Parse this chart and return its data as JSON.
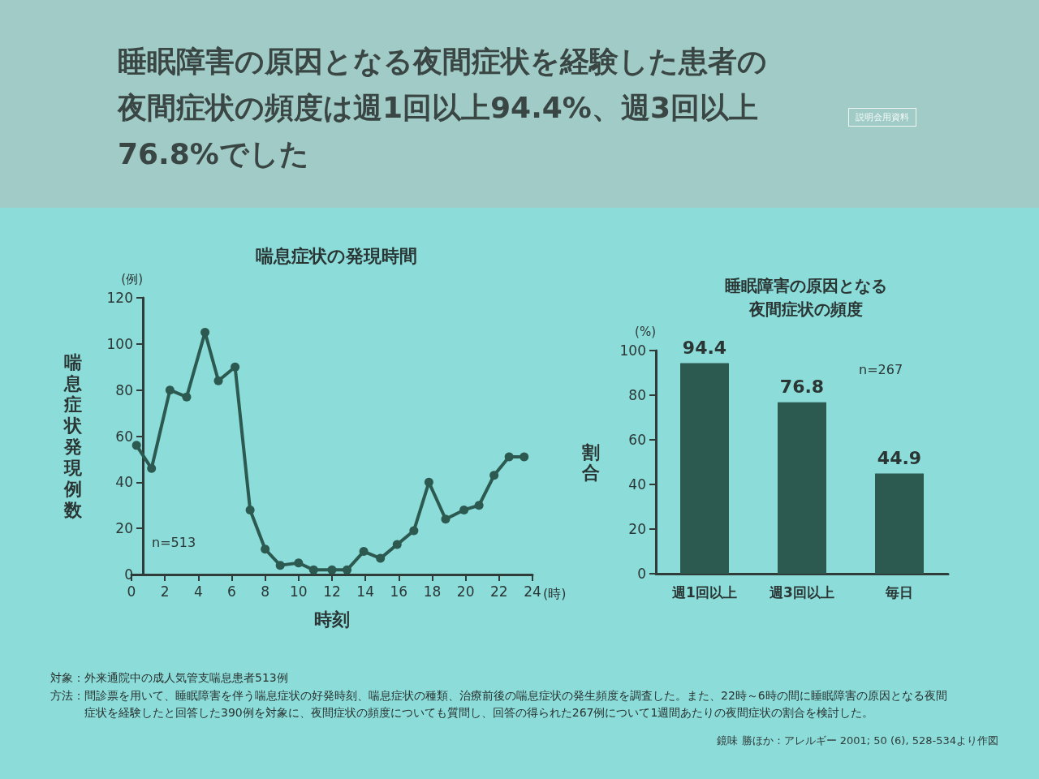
{
  "chart_data": [
    {
      "type": "other",
      "title": "睡眠障害の原因となる夜間症状を経験した患者の夜間症状の頻度は週1回以上94.4%、週3回以上76.8%でした",
      "annotations": [
        "説明会用資料"
      ]
    },
    {
      "type": "line",
      "title": "喘息症状の発現時間",
      "xlabel": "時刻",
      "ylabel": "喘息症状発現例数",
      "x": [
        0.3,
        1.2,
        2.3,
        3.3,
        4.4,
        5.2,
        6.2,
        7.1,
        8,
        8.9,
        10,
        10.9,
        12,
        12.9,
        13.9,
        14.9,
        15.9,
        16.9,
        17.8,
        18.8,
        19.9,
        20.8,
        21.7,
        22.6,
        23.5
      ],
      "values": [
        56,
        46,
        80,
        77,
        105,
        84,
        90,
        28,
        11,
        4,
        5,
        2,
        2,
        2,
        10,
        7,
        13,
        19,
        40,
        24,
        28,
        30,
        43,
        51,
        51
      ],
      "color": "#2d5a50",
      "xlim": [
        0,
        24
      ],
      "xticks": [
        0,
        2,
        4,
        6,
        8,
        10,
        12,
        14,
        16,
        18,
        20,
        22,
        24
      ],
      "ylim": [
        0,
        120
      ],
      "yticks": [
        0,
        20,
        40,
        60,
        80,
        100,
        120
      ],
      "marker": "circle",
      "line_style": "solid",
      "annotations": [
        "(例)",
        "(時)",
        "n=513"
      ]
    },
    {
      "type": "bar",
      "title": "睡眠障害の原因となる夜間症状の頻度",
      "ylabel": "割合",
      "categories": [
        "週1回以上",
        "週3回以上",
        "毎日"
      ],
      "values": [
        94.4,
        76.8,
        44.9
      ],
      "color": "#2d5a50",
      "ylim": [
        0,
        100
      ],
      "yticks": [
        0,
        20,
        40,
        60,
        80,
        100
      ],
      "data_labels": true,
      "annotations": [
        "(%)",
        "n=267"
      ]
    },
    {
      "type": "other",
      "annotations": [
        "対象：外来通院中の成人気管支喘息患者513例",
        "方法：問診票を用いて、睡眠障害を伴う喘息症状の好発時刻、喘息症状の種類、治療前後の喘息症状の発生頻度を調査した。また、22時～6時の間に睡眠障害の原因となる夜間症状を経験したと回答した390例を対象に、夜間症状の頻度についても質問し、回答の得られた267例について1週間あたりの夜間症状の割合を検討した。",
        "鏡味 勝ほか：アレルギー 2001; 50 (6), 528-534より作図"
      ]
    }
  ]
}
